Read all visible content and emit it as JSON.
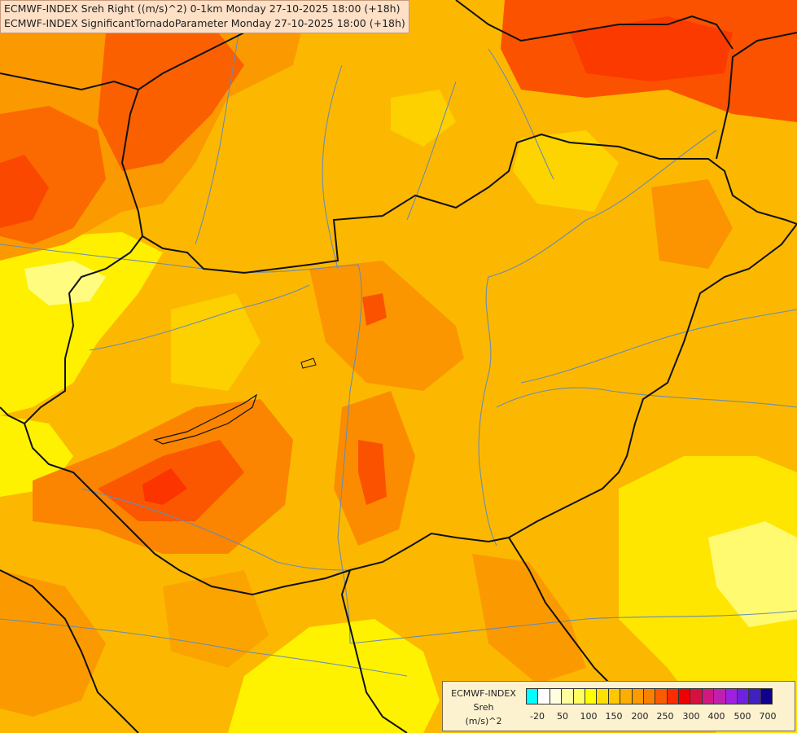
{
  "title": {
    "line1": "ECMWF-INDEX Sreh Right ((m/s)^2) 0-1km Monday 27-10-2025 18:00 (+18h)",
    "line2": "ECMWF-INDEX SignificantTornadoParameter Monday 27-10-2025 18:00 (+18h)"
  },
  "legend": {
    "line1": "ECMWF-INDEX",
    "line2": "Sreh",
    "line3": "(m/s)^2",
    "colors": [
      "#00ffff",
      "#ffffff",
      "#ffffe0",
      "#ffffa0",
      "#ffff60",
      "#ffff00",
      "#fde000",
      "#fdc800",
      "#fcaf00",
      "#fc9a00",
      "#fc8000",
      "#fc5a00",
      "#fc2c00",
      "#f00000",
      "#d81040",
      "#d01880",
      "#c020b0",
      "#a020e0",
      "#7020e0",
      "#4020c0",
      "#100090"
    ],
    "ticks": [
      "-20",
      "50",
      "100",
      "150",
      "200",
      "250",
      "300",
      "400",
      "500",
      "700"
    ]
  },
  "colors": {
    "yellow": "#fff700",
    "light_yellow": "#fffc80",
    "gold": "#fcc200",
    "orange": "#faa800",
    "dark_orange": "#fa8200",
    "red_orange": "#fb5a00",
    "red": "#fb3800",
    "border": "#111111",
    "river": "#6a8cb0"
  }
}
